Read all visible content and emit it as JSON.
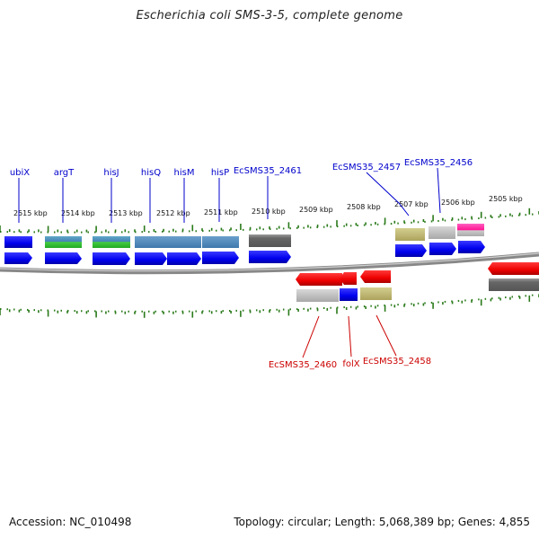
{
  "header": {
    "title": "Escherichia coli SMS-3-5, complete genome"
  },
  "footer": {
    "accession": "Accession: NC_010498",
    "topology": "Topology: circular; Length: 5,068,389 bp; Genes: 4,855"
  },
  "colors": {
    "forward_label": "#0000cc",
    "reverse_label": "#cc0000",
    "tick": "#2a7a1a",
    "backbone": "#777777"
  },
  "scale": {
    "ticks": [
      {
        "label": "2515 kbp"
      },
      {
        "label": "2514 kbp"
      },
      {
        "label": "2513 kbp"
      },
      {
        "label": "2512 kbp"
      },
      {
        "label": "2511 kbp"
      },
      {
        "label": "2510 kbp"
      },
      {
        "label": "2509 kbp"
      },
      {
        "label": "2508 kbp"
      },
      {
        "label": "2507 kbp"
      },
      {
        "label": "2506 kbp"
      },
      {
        "label": "2505 kbp"
      }
    ]
  },
  "genes": {
    "forward": [
      {
        "name": "ubiX",
        "color": "blue"
      },
      {
        "name": "argT",
        "color": "green"
      },
      {
        "name": "hisJ",
        "color": "green"
      },
      {
        "name": "hisQ",
        "color": "steelblue"
      },
      {
        "name": "hisM",
        "color": "steelblue"
      },
      {
        "name": "hisP",
        "color": "steelblue"
      },
      {
        "name": "EcSMS35_2461",
        "color": "gray"
      },
      {
        "name": "EcSMS35_2457",
        "color": "khaki"
      },
      {
        "name": "EcSMS35_2456",
        "color": "silver"
      }
    ],
    "reverse": [
      {
        "name": "EcSMS35_2460",
        "color": "gray"
      },
      {
        "name": "folX",
        "color": "blue"
      },
      {
        "name": "EcSMS35_2458",
        "color": "khaki"
      }
    ]
  }
}
